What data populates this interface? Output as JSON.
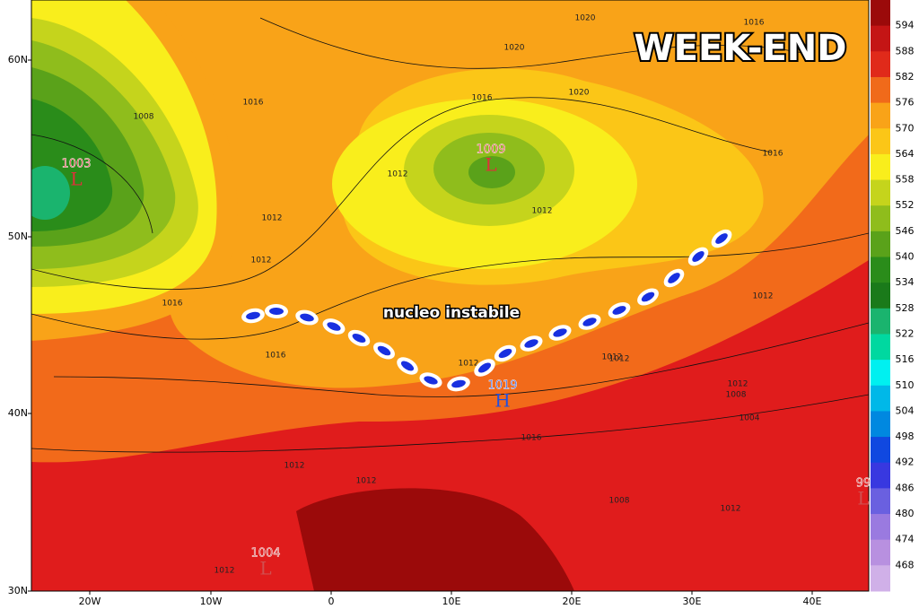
{
  "title": "WEEK-END",
  "annotation": "nucleo instabile",
  "lat_labels": [
    "60N",
    "50N",
    "40N",
    "30N"
  ],
  "lon_labels": [
    "20W",
    "10W",
    "0",
    "10E",
    "20E",
    "30E",
    "40E"
  ],
  "colorbar_labels": [
    "594",
    "588",
    "582",
    "576",
    "570",
    "564",
    "558",
    "552",
    "546",
    "540",
    "534",
    "528",
    "522",
    "516",
    "510",
    "504",
    "498",
    "492",
    "486",
    "480",
    "474",
    "468"
  ],
  "pressure_centers": [
    {
      "value": "1003",
      "symbol": "L"
    },
    {
      "value": "1009",
      "symbol": "L"
    },
    {
      "value": "1019",
      "symbol": "H"
    },
    {
      "value": "1004",
      "symbol": "L"
    },
    {
      "value": "99",
      "symbol": "L"
    }
  ],
  "isobar_labels": [
    "1020",
    "1020",
    "1016",
    "1020",
    "1016",
    "1008",
    "1016",
    "1012",
    "1012",
    "1012",
    "1012",
    "1016",
    "1016",
    "1012",
    "1012",
    "1012",
    "1016",
    "1012",
    "1008",
    "1004",
    "1012",
    "1008",
    "1012",
    "1012",
    "1016",
    "1012",
    "1012"
  ]
}
